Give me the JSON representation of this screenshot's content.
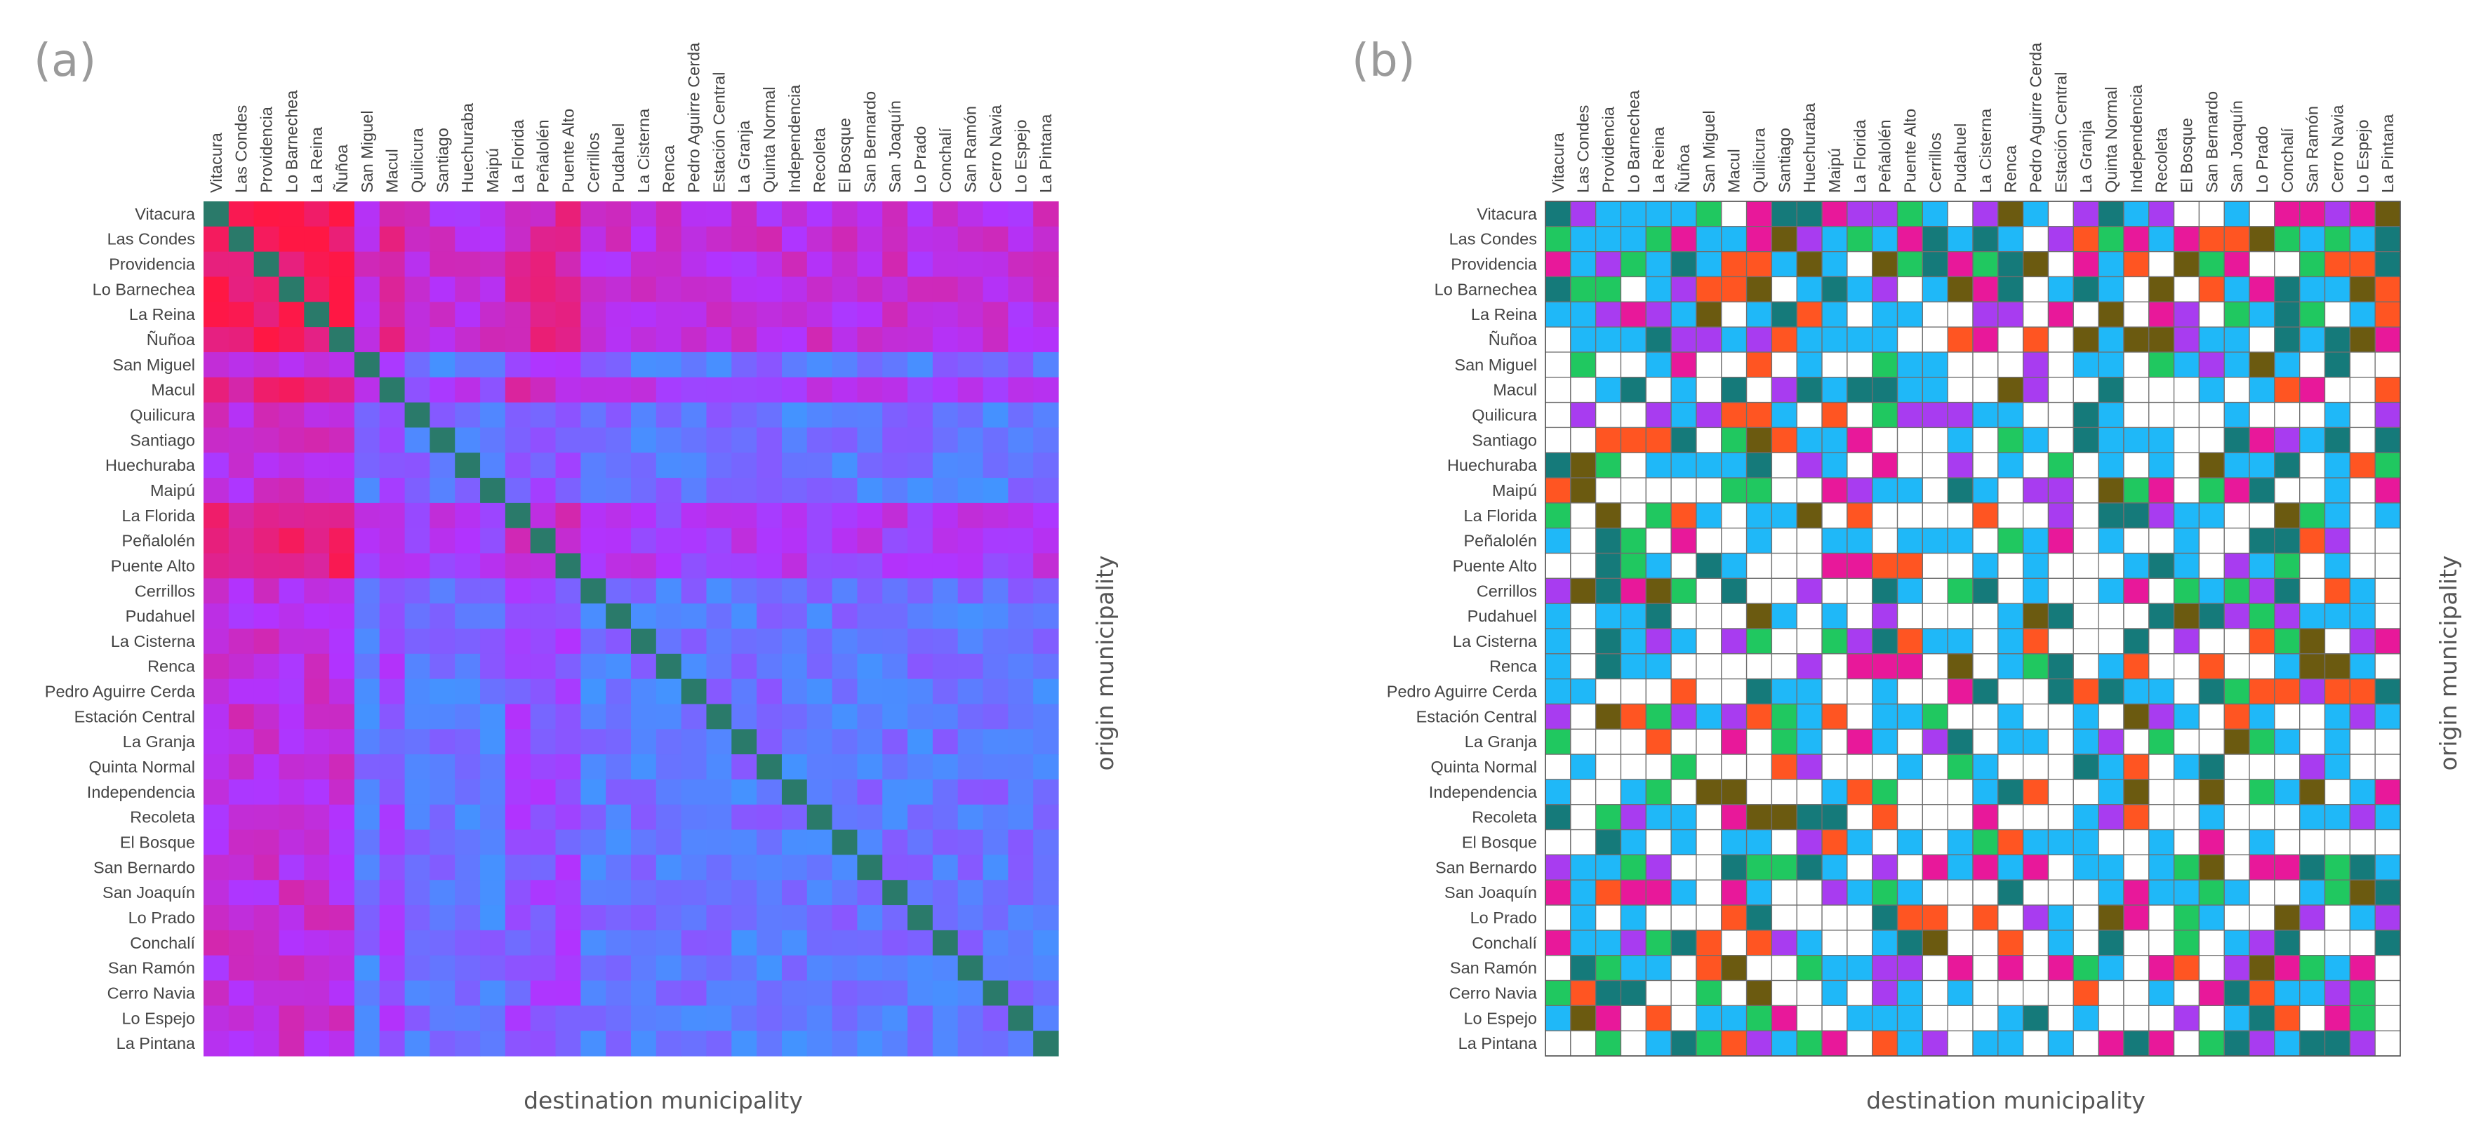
{
  "chart_data": [
    {
      "type": "heatmap",
      "panel_label": "(a)",
      "xlabel": "destination municipality",
      "ylabel": "origin municipality",
      "grid": false,
      "legend": "none",
      "colors": {
        "low": "#1fb3ff",
        "mid": "#b133ff",
        "high": "#ff1744",
        "diagonal": "#2a7a6a"
      }
    },
    {
      "type": "heatmap",
      "panel_label": "(b)",
      "xlabel": "destination municipality",
      "ylabel": "origin municipality",
      "grid": true,
      "legend": "none",
      "colors": {
        "empty": "#ffffff",
        "blue": "#1fb8f8",
        "orange": "#ff5522",
        "magenta": "#e8189a",
        "purple": "#a83cf0",
        "green": "#20c860",
        "teal": "#157a7a",
        "olive": "#6b5a10"
      }
    }
  ],
  "municipalities": [
    "Vitacura",
    "Las Condes",
    "Providencia",
    "Lo Barnechea",
    "La Reina",
    "Ñuñoa",
    "San Miguel",
    "Macul",
    "Quilicura",
    "Santiago",
    "Huechuraba",
    "Maipú",
    "La Florida",
    "Peñalolén",
    "Puente Alto",
    "Cerrillos",
    "Pudahuel",
    "La Cisterna",
    "Renca",
    "Pedro Aguirre Cerda",
    "Estación Central",
    "La Granja",
    "Quinta Normal",
    "Independencia",
    "Recoleta",
    "El Bosque",
    "San Bernardo",
    "San Joaquín",
    "Lo Prado",
    "Conchalí",
    "San Ramón",
    "Cerro Navia",
    "Lo Espejo",
    "La Pintana"
  ],
  "affluent_origins": [
    "Vitacura",
    "Las Condes",
    "Providencia",
    "Lo Barnechea",
    "La Reina",
    "Ñuñoa"
  ],
  "highlight_origins": [
    "Macul",
    "La Florida",
    "Peñalolén",
    "Puente Alto"
  ]
}
